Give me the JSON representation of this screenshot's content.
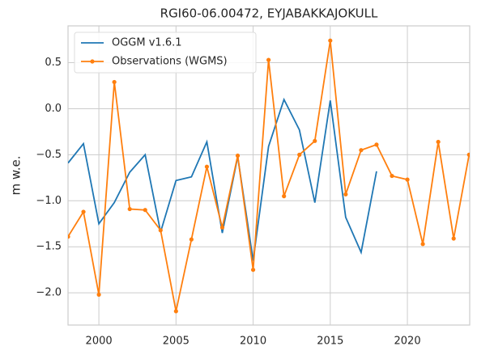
{
  "chart_data": {
    "type": "line",
    "title": "RGI60-06.00472, EYJABAKKAJOKULL",
    "y_label": "m w.e.",
    "x": [
      1998,
      1999,
      2000,
      2001,
      2002,
      2003,
      2004,
      2005,
      2006,
      2007,
      2008,
      2009,
      2010,
      2011,
      2012,
      2013,
      2014,
      2015,
      2016,
      2017,
      2018,
      2019,
      2020,
      2021,
      2022,
      2023,
      2024
    ],
    "series": [
      {
        "name": "OGGM v1.6.1",
        "color": "#1f77b4",
        "marker": false,
        "values": [
          -0.59,
          -0.38,
          -1.25,
          -1.02,
          -0.69,
          -0.5,
          -1.34,
          -0.78,
          -0.74,
          -0.36,
          -1.35,
          -0.52,
          -1.65,
          -0.41,
          0.1,
          -0.23,
          -1.02,
          0.09,
          -1.18,
          -1.56,
          -0.68,
          null,
          null,
          null,
          null,
          null,
          null
        ]
      },
      {
        "name": "Observations (WGMS)",
        "color": "#ff7f0e",
        "marker": true,
        "values": [
          -1.39,
          -1.12,
          -2.02,
          0.29,
          -1.09,
          -1.1,
          -1.32,
          -2.2,
          -1.42,
          -0.63,
          -1.29,
          -0.51,
          -1.75,
          0.53,
          -0.95,
          -0.5,
          -0.35,
          0.74,
          -0.93,
          -0.45,
          -0.39,
          -0.73,
          -0.77,
          -1.47,
          -0.36,
          -1.41,
          -0.5
        ]
      }
    ],
    "xlim": [
      1998,
      2024.04
    ],
    "ylim": [
      -2.35,
      0.9
    ],
    "xticks": [
      2000,
      2005,
      2010,
      2015,
      2020
    ],
    "yticks": [
      {
        "value": -2.0,
        "label": "−2.0"
      },
      {
        "value": -1.5,
        "label": "−1.5"
      },
      {
        "value": -1.0,
        "label": "−1.0"
      },
      {
        "value": -0.5,
        "label": "−0.5"
      },
      {
        "value": 0,
        "label": "0.0"
      },
      0.5
    ],
    "grid": true,
    "legend": "upper-left"
  }
}
